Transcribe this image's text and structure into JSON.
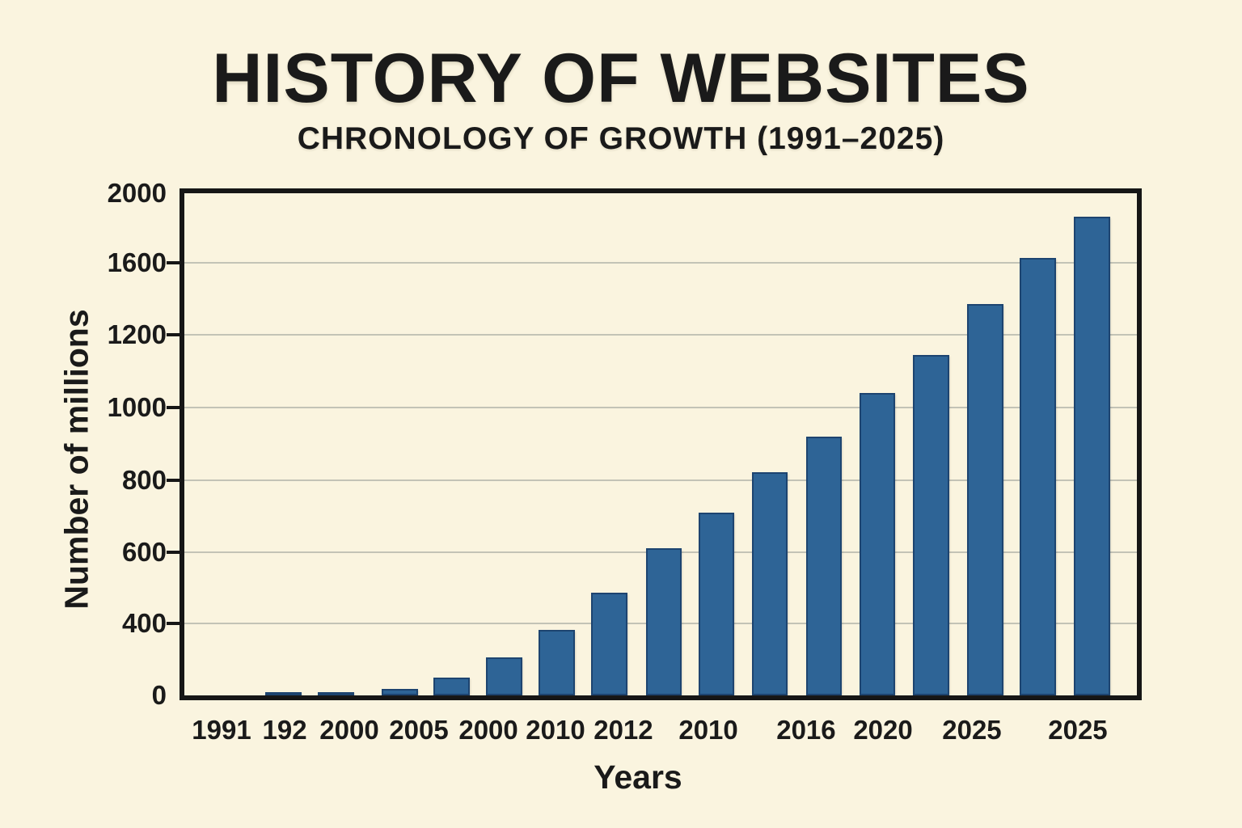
{
  "header": {
    "title": "HISTORY OF WEBSITES",
    "subtitle": "CHRONOLOGY OF GROWTH (1991–2025)"
  },
  "colors": {
    "background": "#faf4df",
    "bar_fill": "#2e6496",
    "bar_border": "#1d4470",
    "gridline": "#c3c3b6",
    "frame_and_text": "#161616"
  },
  "chart_data": {
    "type": "bar",
    "title": "HISTORY OF WEBSITES",
    "subtitle": "CHRONOLOGY OF GROWTH (1991–2025)",
    "xlabel": "Years",
    "ylabel": "Number of millions",
    "ylim": [
      0,
      2000
    ],
    "grid": "horizontal",
    "legend": "none",
    "y_tick_labels": [
      "2000",
      "1600",
      "1200",
      "1000",
      "800",
      "600",
      "400",
      "0"
    ],
    "x_tick_labels": [
      "1991",
      "192",
      "2000",
      "2005",
      "2000",
      "2010",
      "2012",
      "2010",
      "2016",
      "2020",
      "2025",
      "2025"
    ],
    "note": "16 bars are drawn but only 12 x-axis labels are printed; values estimated against the labeled gridlines",
    "values": [
      10,
      20,
      40,
      100,
      215,
      370,
      490,
      610,
      710,
      820,
      920,
      1040,
      1145,
      1380,
      1630,
      1860
    ],
    "layout": {
      "bar_width_pct": 3.8,
      "bars": [
        {
          "value": 10,
          "left_pct": 8.5,
          "height_pct": 0.48
        },
        {
          "value": 20,
          "left_pct": 14.02,
          "height_pct": 0.64
        },
        {
          "value": 40,
          "left_pct": 20.73,
          "height_pct": 1.29
        },
        {
          "value": 100,
          "left_pct": 26.17,
          "height_pct": 3.54
        },
        {
          "value": 215,
          "left_pct": 31.69,
          "height_pct": 7.57
        },
        {
          "value": 370,
          "left_pct": 37.21,
          "height_pct": 13.04
        },
        {
          "value": 490,
          "left_pct": 42.74,
          "height_pct": 20.45
        },
        {
          "value": 610,
          "left_pct": 48.43,
          "height_pct": 29.31
        },
        {
          "value": 710,
          "left_pct": 53.95,
          "height_pct": 36.39
        },
        {
          "value": 820,
          "left_pct": 59.56,
          "height_pct": 44.44
        },
        {
          "value": 920,
          "left_pct": 65.25,
          "height_pct": 51.53
        },
        {
          "value": 1040,
          "left_pct": 70.86,
          "height_pct": 60.23
        },
        {
          "value": 1145,
          "left_pct": 76.47,
          "height_pct": 67.79
        },
        {
          "value": 1380,
          "left_pct": 82.16,
          "height_pct": 77.94
        },
        {
          "value": 1630,
          "left_pct": 87.68,
          "height_pct": 87.12
        },
        {
          "value": 1860,
          "left_pct": 93.37,
          "height_pct": 95.33
        }
      ],
      "y_ticks": [
        {
          "label": "2000",
          "pct": 0,
          "grid": false
        },
        {
          "label": "1600",
          "pct": 13.8,
          "grid": true
        },
        {
          "label": "1200",
          "pct": 28.2,
          "grid": true
        },
        {
          "label": "1000",
          "pct": 42.7,
          "grid": true
        },
        {
          "label": "800",
          "pct": 57.2,
          "grid": true
        },
        {
          "label": "600",
          "pct": 71.5,
          "grid": true
        },
        {
          "label": "400",
          "pct": 85.7,
          "grid": true
        },
        {
          "label": "0",
          "pct": 100,
          "grid": false
        }
      ],
      "x_labels": [
        {
          "text": "1991",
          "pct": 3.91
        },
        {
          "text": "192",
          "pct": 10.54
        },
        {
          "text": "2000",
          "pct": 17.33
        },
        {
          "text": "2005",
          "pct": 24.64
        },
        {
          "text": "2000",
          "pct": 31.95
        },
        {
          "text": "2010",
          "pct": 39.0
        },
        {
          "text": "2012",
          "pct": 46.13
        },
        {
          "text": "2010",
          "pct": 55.06
        },
        {
          "text": "2016",
          "pct": 65.33
        },
        {
          "text": "2020",
          "pct": 73.41
        },
        {
          "text": "2025",
          "pct": 82.75
        },
        {
          "text": "2025",
          "pct": 93.88
        }
      ]
    }
  }
}
